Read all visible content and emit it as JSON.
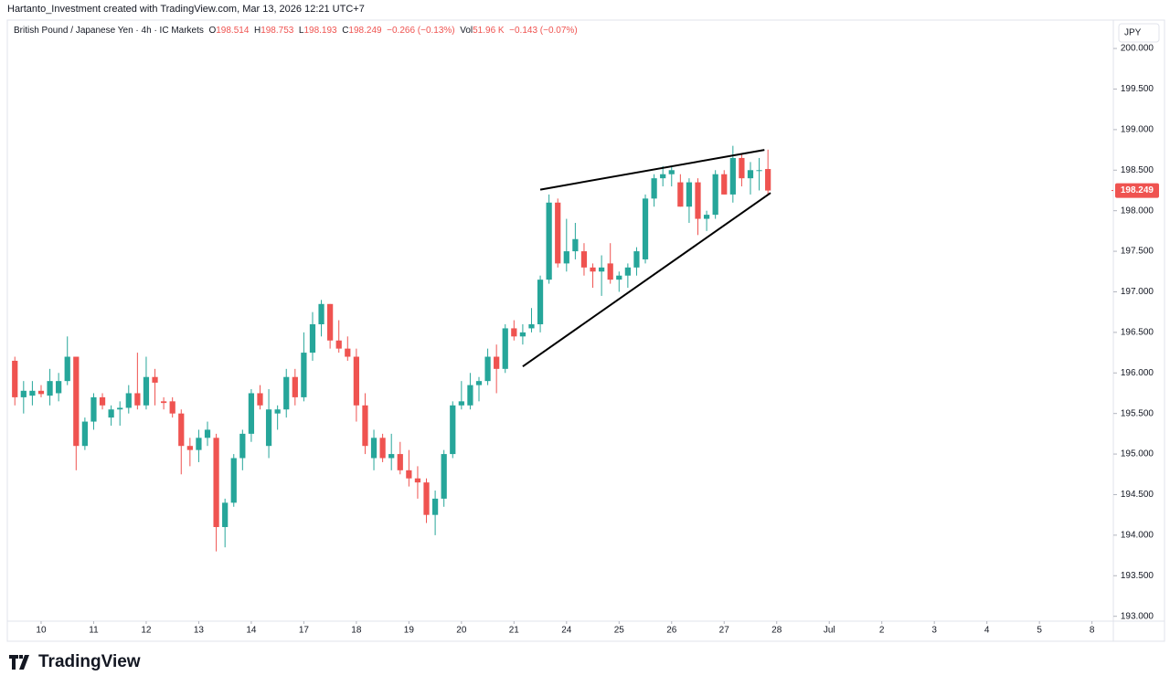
{
  "chart_data": {
    "type": "candlestick",
    "attribution": "Hartanto_Investment created with TradingView.com, Mar 13, 2026 12:21 UTC+7",
    "title": "British Pound / Japanese Yen · 4h · IC Markets",
    "ohlc_labels": [
      "O",
      "H",
      "L",
      "C"
    ],
    "change": "−0.266 (−0.13%)",
    "volume_label": "Vol",
    "volume": "51.96 K",
    "volume_change": "−0.143 (−0.07%)",
    "currency": "JPY",
    "logo": "TradingView",
    "up_color": "#26a69a",
    "down_color": "#ef5350",
    "xlim": [
      -3.86,
      122.44
    ],
    "xticks": [
      {
        "value": 0,
        "label": "10"
      },
      {
        "value": 6,
        "label": "11"
      },
      {
        "value": 12,
        "label": "12"
      },
      {
        "value": 18,
        "label": "13"
      },
      {
        "value": 24,
        "label": "14"
      },
      {
        "value": 30,
        "label": "17"
      },
      {
        "value": 36,
        "label": "18"
      },
      {
        "value": 42,
        "label": "19"
      },
      {
        "value": 48,
        "label": "20"
      },
      {
        "value": 54,
        "label": "21"
      },
      {
        "value": 60,
        "label": "24"
      },
      {
        "value": 66,
        "label": "25"
      },
      {
        "value": 72,
        "label": "26"
      },
      {
        "value": 78,
        "label": "27"
      },
      {
        "value": 84,
        "label": "28"
      },
      {
        "value": 90,
        "label": "Jul"
      },
      {
        "value": 96,
        "label": "2"
      },
      {
        "value": 102,
        "label": "3"
      },
      {
        "value": 108,
        "label": "4"
      },
      {
        "value": 114,
        "label": "5"
      },
      {
        "value": 120,
        "label": "8"
      }
    ],
    "ylim": [
      192.94,
      200.35
    ],
    "yticks": [
      {
        "value": 200,
        "label": "200.000"
      },
      {
        "value": 199.5,
        "label": "199.500"
      },
      {
        "value": 199,
        "label": "199.000"
      },
      {
        "value": 198.5,
        "label": "198.500"
      },
      {
        "value": 198,
        "label": "198.000"
      },
      {
        "value": 197.5,
        "label": "197.500"
      },
      {
        "value": 197,
        "label": "197.000"
      },
      {
        "value": 196.5,
        "label": "196.500"
      },
      {
        "value": 196,
        "label": "196.000"
      },
      {
        "value": 195.5,
        "label": "195.500"
      },
      {
        "value": 195,
        "label": "195.000"
      },
      {
        "value": 194.5,
        "label": "194.500"
      },
      {
        "value": 194,
        "label": "194.000"
      },
      {
        "value": 193.5,
        "label": "193.500"
      },
      {
        "value": 193,
        "label": "193.000"
      }
    ],
    "x": [
      -3,
      -2,
      -1,
      0,
      1,
      2,
      3,
      4,
      5,
      6,
      7,
      8,
      9,
      10,
      11,
      12,
      13,
      14,
      15,
      16,
      17,
      18,
      19,
      20,
      21,
      22,
      23,
      24,
      25,
      26,
      27,
      28,
      29,
      30,
      31,
      32,
      33,
      34,
      35,
      36,
      37,
      38,
      39,
      40,
      41,
      42,
      43,
      44,
      45,
      46,
      47,
      48,
      49,
      50,
      51,
      52,
      53,
      54,
      55,
      56,
      57,
      58,
      59,
      60,
      61,
      62,
      63,
      64,
      65,
      66,
      67,
      68,
      69,
      70,
      71,
      72,
      73,
      74,
      75,
      76,
      77,
      78,
      79,
      80,
      81,
      82,
      83
    ],
    "open": [
      196.15,
      195.7,
      195.72,
      195.78,
      195.72,
      195.75,
      195.9,
      196.2,
      195.1,
      195.4,
      195.7,
      195.45,
      195.55,
      195.57,
      195.75,
      195.6,
      195.95,
      195.65,
      195.65,
      195.5,
      195.1,
      195.05,
      195.2,
      195.2,
      194.1,
      194.4,
      194.95,
      195.25,
      195.75,
      195.1,
      195.5,
      195.55,
      195.95,
      195.7,
      196.25,
      196.6,
      196.85,
      196.4,
      196.3,
      196.2,
      195.6,
      194.95,
      195.2,
      194.95,
      195.0,
      194.8,
      194.7,
      194.65,
      194.25,
      194.45,
      195.0,
      195.6,
      195.6,
      195.85,
      195.9,
      196.2,
      196.05,
      196.55,
      196.45,
      196.55,
      196.6,
      197.15,
      198.1,
      197.35,
      197.5,
      197.5,
      197.3,
      197.25,
      197.35,
      197.15,
      197.2,
      197.3,
      197.4,
      198.15,
      198.4,
      198.45,
      198.35,
      198.05,
      198.35,
      197.9,
      197.95,
      198.45,
      198.2,
      198.65,
      198.4,
      198.5,
      198.514
    ],
    "high": [
      196.2,
      195.9,
      195.9,
      195.85,
      196.05,
      196.0,
      196.45,
      196.2,
      195.45,
      195.75,
      195.75,
      195.6,
      195.65,
      195.85,
      196.25,
      196.2,
      196.05,
      195.7,
      195.7,
      195.55,
      195.2,
      195.3,
      195.4,
      195.25,
      194.45,
      195.0,
      195.3,
      195.8,
      195.85,
      195.8,
      195.6,
      196.05,
      196.05,
      196.5,
      196.75,
      196.9,
      196.85,
      196.65,
      196.45,
      196.3,
      195.75,
      195.3,
      195.25,
      195.25,
      195.15,
      195.05,
      194.85,
      194.7,
      194.55,
      195.05,
      195.65,
      195.9,
      196.0,
      195.95,
      196.3,
      196.35,
      196.6,
      196.65,
      196.6,
      196.8,
      197.2,
      198.2,
      198.15,
      197.9,
      197.85,
      197.6,
      197.35,
      197.45,
      197.6,
      197.25,
      197.35,
      197.55,
      198.2,
      198.45,
      198.55,
      198.55,
      198.45,
      198.4,
      198.4,
      198.0,
      198.5,
      198.5,
      198.8,
      198.7,
      198.6,
      198.65,
      198.753
    ],
    "low": [
      195.6,
      195.5,
      195.6,
      195.7,
      195.6,
      195.65,
      195.85,
      194.8,
      195.05,
      195.3,
      195.55,
      195.35,
      195.35,
      195.5,
      195.55,
      195.55,
      195.6,
      195.55,
      195.45,
      194.75,
      194.85,
      194.9,
      195.1,
      193.8,
      193.85,
      194.35,
      194.8,
      195.15,
      195.55,
      194.95,
      195.3,
      195.45,
      195.6,
      195.65,
      196.15,
      196.45,
      196.3,
      196.25,
      196.15,
      195.4,
      195.0,
      194.8,
      194.9,
      194.8,
      194.75,
      194.6,
      194.45,
      194.15,
      194.0,
      194.35,
      194.95,
      195.55,
      195.55,
      195.65,
      195.85,
      195.75,
      196.0,
      196.4,
      196.35,
      196.5,
      196.5,
      197.1,
      197.3,
      197.25,
      197.4,
      197.2,
      197.05,
      196.95,
      197.1,
      197.0,
      197.05,
      197.2,
      197.35,
      198.05,
      198.3,
      198.3,
      198.05,
      197.85,
      197.7,
      197.75,
      197.9,
      198.2,
      198.1,
      198.3,
      198.2,
      198.25,
      198.193
    ],
    "close": [
      195.7,
      195.78,
      195.78,
      195.74,
      195.9,
      195.9,
      196.2,
      195.1,
      195.4,
      195.7,
      195.6,
      195.55,
      195.57,
      195.75,
      195.6,
      195.95,
      195.88,
      195.63,
      195.5,
      195.1,
      195.05,
      195.2,
      195.3,
      194.1,
      194.4,
      194.95,
      195.25,
      195.75,
      195.6,
      195.55,
      195.55,
      195.95,
      195.7,
      196.25,
      196.6,
      196.85,
      196.4,
      196.3,
      196.2,
      195.6,
      195.1,
      195.2,
      194.95,
      195.0,
      194.8,
      194.7,
      194.65,
      194.25,
      194.45,
      195.0,
      195.6,
      195.65,
      195.85,
      195.9,
      196.2,
      196.05,
      196.55,
      196.45,
      196.5,
      196.6,
      197.15,
      198.1,
      197.35,
      197.5,
      197.65,
      197.3,
      197.25,
      197.3,
      197.15,
      197.2,
      197.3,
      197.5,
      198.15,
      198.4,
      198.45,
      198.5,
      198.05,
      198.35,
      197.9,
      197.95,
      198.45,
      198.2,
      198.65,
      198.4,
      198.5,
      198.5,
      198.249
    ],
    "trendlines": [
      {
        "x": [
          57,
          82.6
        ],
        "y": [
          198.26,
          198.75
        ],
        "color": "#000000"
      },
      {
        "x": [
          55,
          83.3
        ],
        "y": [
          196.08,
          198.22
        ],
        "color": "#000000"
      }
    ]
  }
}
